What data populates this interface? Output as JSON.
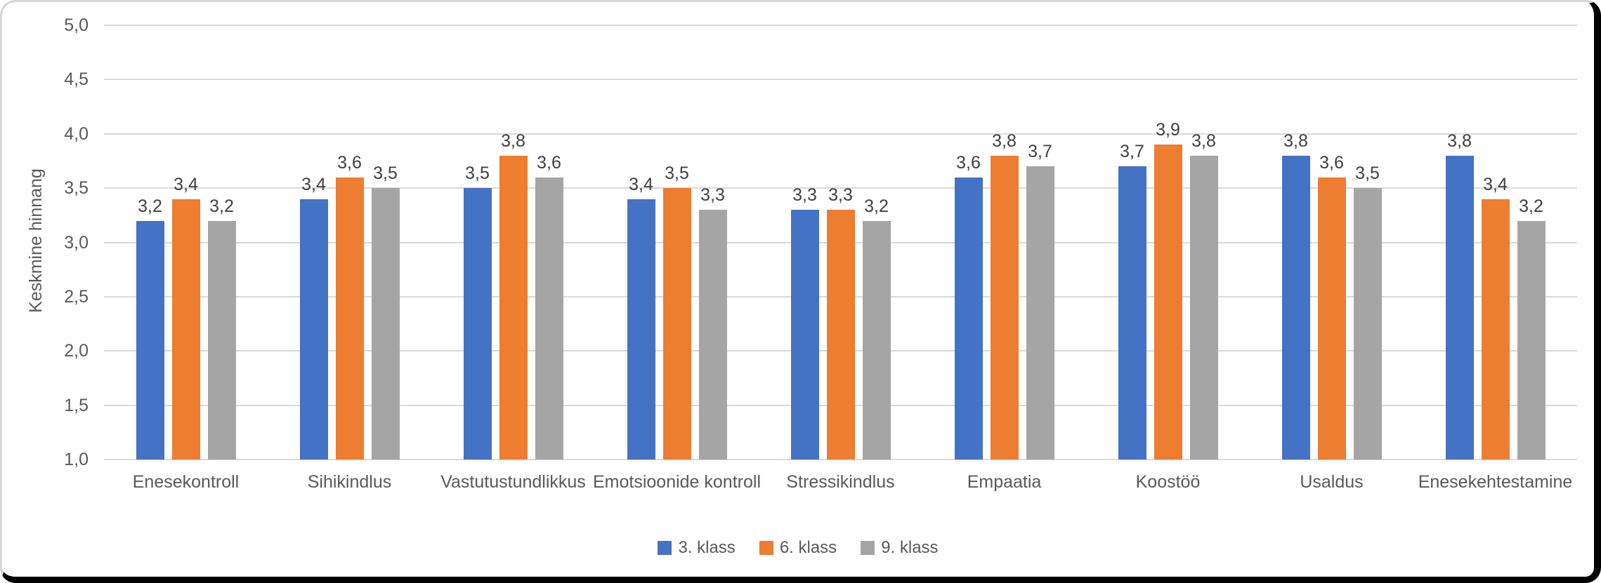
{
  "chart_data": {
    "type": "bar",
    "title": "",
    "xlabel": "",
    "ylabel": "Keskmine hinnang",
    "ylim": [
      1.0,
      5.0
    ],
    "ytick_step": 0.5,
    "ytick_labels": [
      "1,0",
      "1,5",
      "2,0",
      "2,5",
      "3,0",
      "3,5",
      "4,0",
      "4,5",
      "5,0"
    ],
    "grid": true,
    "data_labels": true,
    "legend_position": "bottom-center",
    "decimal_separator": ",",
    "categories": [
      "Enesekontroll",
      "Sihikindlus",
      "Vastutustundlikkus",
      "Emotsioonide kontroll",
      "Stressikindlus",
      "Empaatia",
      "Koostöö",
      "Usaldus",
      "Enesekehtestamine"
    ],
    "series": [
      {
        "name": "3. klass",
        "color": "#4472C4",
        "values": [
          3.2,
          3.4,
          3.5,
          3.4,
          3.3,
          3.6,
          3.7,
          3.8,
          3.8
        ],
        "labels": [
          "3,2",
          "3,4",
          "3,5",
          "3,4",
          "3,3",
          "3,6",
          "3,7",
          "3,8",
          "3,8"
        ]
      },
      {
        "name": "6. klass",
        "color": "#ED7D31",
        "values": [
          3.4,
          3.6,
          3.8,
          3.5,
          3.3,
          3.8,
          3.9,
          3.6,
          3.4
        ],
        "labels": [
          "3,4",
          "3,6",
          "3,8",
          "3,5",
          "3,3",
          "3,8",
          "3,9",
          "3,6",
          "3,4"
        ]
      },
      {
        "name": "9. klass",
        "color": "#A5A5A5",
        "values": [
          3.2,
          3.5,
          3.6,
          3.3,
          3.2,
          3.7,
          3.8,
          3.5,
          3.2
        ],
        "labels": [
          "3,2",
          "3,5",
          "3,6",
          "3,3",
          "3,2",
          "3,7",
          "3,8",
          "3,5",
          "3,2"
        ]
      }
    ]
  },
  "colors": {
    "background": "#FFFFFF",
    "gridline": "#D9D9D9",
    "axis_text": "#595959",
    "data_label_text": "#404040",
    "frame_border_dark": "#000000",
    "frame_border_light": "#D6D6D6"
  }
}
